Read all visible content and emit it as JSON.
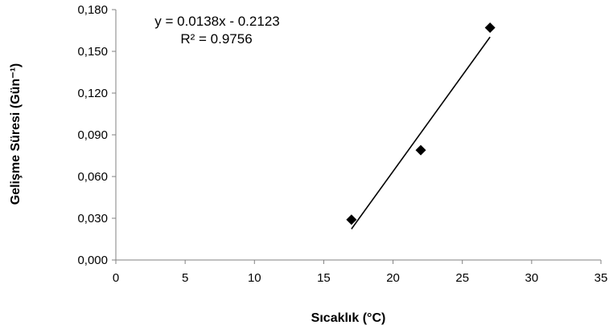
{
  "chart_data": {
    "type": "scatter",
    "title": "",
    "xlabel": "Sıcaklık  (°C)",
    "ylabel": "Gelişme Süresi (Gün⁻¹)",
    "xlim": [
      0,
      35
    ],
    "ylim": [
      0,
      0.18
    ],
    "x_ticks": [
      0,
      5,
      10,
      15,
      20,
      25,
      30,
      35
    ],
    "x_tick_labels": [
      "0",
      "5",
      "10",
      "15",
      "20",
      "25",
      "30",
      "35"
    ],
    "y_ticks": [
      0,
      0.03,
      0.06,
      0.09,
      0.12,
      0.15,
      0.18
    ],
    "y_tick_labels": [
      "0,000",
      "0,030",
      "0,060",
      "0,090",
      "0,120",
      "0,150",
      "0,180"
    ],
    "grid": false,
    "legend": "none",
    "marker": "diamond",
    "marker_color": "#000000",
    "series": [
      {
        "x": [
          17,
          22,
          27
        ],
        "y": [
          0.029,
          0.079,
          0.167
        ]
      }
    ],
    "trendline": {
      "type": "linear",
      "slope": 0.0138,
      "intercept": -0.2123,
      "x_range": [
        17,
        27
      ],
      "equation_label": "y = 0.0138x - 0.2123",
      "r2_label": "R² = 0.9756"
    }
  }
}
